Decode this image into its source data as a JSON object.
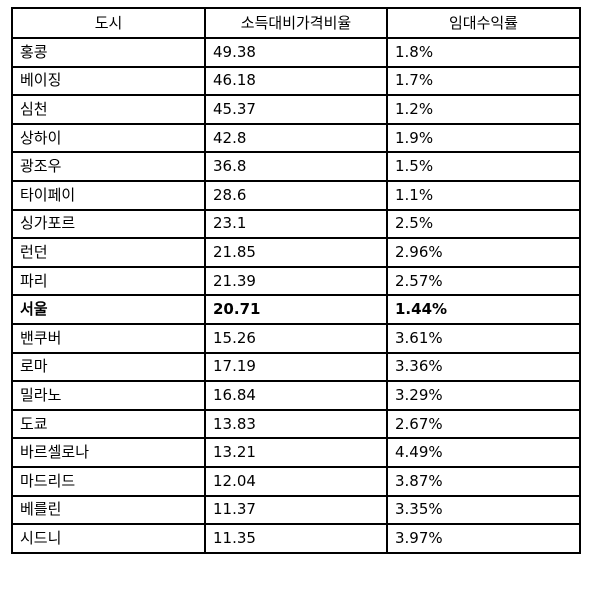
{
  "headers": [
    "도시",
    "소득대비가격비율",
    "임대수익률"
  ],
  "rows": [
    {
      "city": "홍콩",
      "ratio": "49.38",
      "yield": "1.8%",
      "bold": false
    },
    {
      "city": "베이징",
      "ratio": "46.18",
      "yield": "1.7%",
      "bold": false
    },
    {
      "city": "심천",
      "ratio": "45.37",
      "yield": "1.2%",
      "bold": false
    },
    {
      "city": "상하이",
      "ratio": "42.8",
      "yield": "1.9%",
      "bold": false
    },
    {
      "city": "광조우",
      "ratio": "36.8",
      "yield": "1.5%",
      "bold": false
    },
    {
      "city": "타이페이",
      "ratio": "28.6",
      "yield": "1.1%",
      "bold": false
    },
    {
      "city": "싱가포르",
      "ratio": "23.1",
      "yield": "2.5%",
      "bold": false
    },
    {
      "city": "런던",
      "ratio": "21.85",
      "yield": "2.96%",
      "bold": false
    },
    {
      "city": "파리",
      "ratio": "21.39",
      "yield": "2.57%",
      "bold": false
    },
    {
      "city": "서울",
      "ratio": "20.71",
      "yield": "1.44%",
      "bold": true
    },
    {
      "city": "밴쿠버",
      "ratio": "15.26",
      "yield": "3.61%",
      "bold": false
    },
    {
      "city": "로마",
      "ratio": "17.19",
      "yield": "3.36%",
      "bold": false
    },
    {
      "city": "밀라노",
      "ratio": "16.84",
      "yield": "3.29%",
      "bold": false
    },
    {
      "city": "도쿄",
      "ratio": "13.83",
      "yield": "2.67%",
      "bold": false
    },
    {
      "city": "바르셀로나",
      "ratio": "13.21",
      "yield": "4.49%",
      "bold": false
    },
    {
      "city": "마드리드",
      "ratio": "12.04",
      "yield": "3.87%",
      "bold": false
    },
    {
      "city": "베를린",
      "ratio": "11.37",
      "yield": "3.35%",
      "bold": false
    },
    {
      "city": "시드니",
      "ratio": "11.35",
      "yield": "3.97%",
      "bold": false
    }
  ]
}
